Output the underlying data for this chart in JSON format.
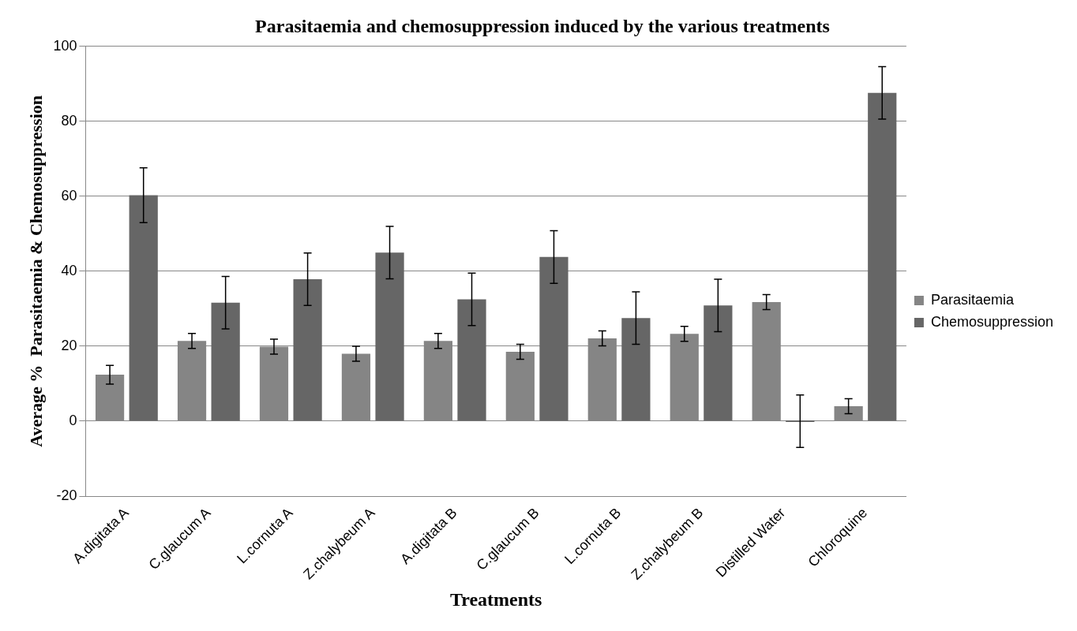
{
  "chart_data": {
    "type": "bar",
    "title": "Parasitaemia and chemosuppression induced by the various treatments",
    "xlabel": "Treatments",
    "ylabel": "Average %  Parasitaemia & Chemosuppression",
    "categories": [
      "A.digitata A",
      "C.glaucum A",
      "L.cornuta A",
      "Z.chalybeum A",
      "A.digitata B",
      "C.glaucum B",
      "L.cornuta B",
      "Z.chalybeum B",
      "Distilled Water",
      "Chloroquine"
    ],
    "series": [
      {
        "name": "Parasitaemia",
        "color": "#858585",
        "values": [
          12.4,
          21.4,
          19.9,
          18,
          21.4,
          18.5,
          22.1,
          23.3,
          31.8,
          4
        ],
        "errors": [
          2.5,
          2,
          2,
          2,
          2,
          2,
          2,
          2,
          2,
          2
        ]
      },
      {
        "name": "Chemosuppression",
        "color": "#666666",
        "values": [
          60.3,
          31.6,
          37.9,
          45,
          32.5,
          43.8,
          27.5,
          30.9,
          0,
          87.6
        ],
        "errors": [
          7.3,
          7,
          7,
          7,
          7,
          7,
          7,
          7,
          7,
          7
        ]
      }
    ],
    "ylim": [
      -20,
      100
    ],
    "yticks": [
      -20,
      0,
      20,
      40,
      60,
      80,
      100
    ],
    "grid": "y",
    "legend": "right"
  }
}
